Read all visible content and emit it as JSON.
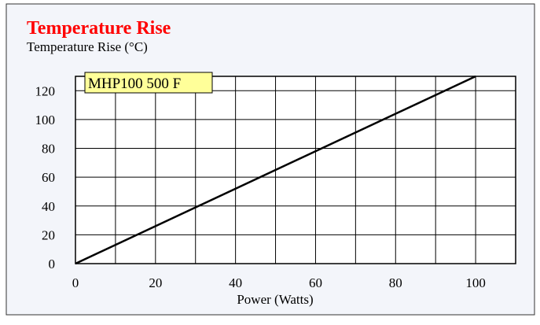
{
  "chart_data": {
    "type": "line",
    "title": "Temperature Rise",
    "y_label": "Temperature Rise (°C)",
    "x_label": "Power (Watts)",
    "annotation": "MHP100 500 F",
    "x": [
      0,
      100
    ],
    "series": [
      {
        "name": "MHP100 500 F",
        "color": "#000000",
        "values": [
          0,
          130
        ]
      }
    ],
    "xlim": [
      0,
      110
    ],
    "xticks": [
      0,
      20,
      40,
      60,
      80,
      100
    ],
    "xminor": [
      10,
      30,
      50,
      70,
      90
    ],
    "ylim": [
      0,
      130
    ],
    "yticks": [
      0,
      20,
      40,
      60,
      80,
      100,
      120
    ],
    "grid": true
  }
}
